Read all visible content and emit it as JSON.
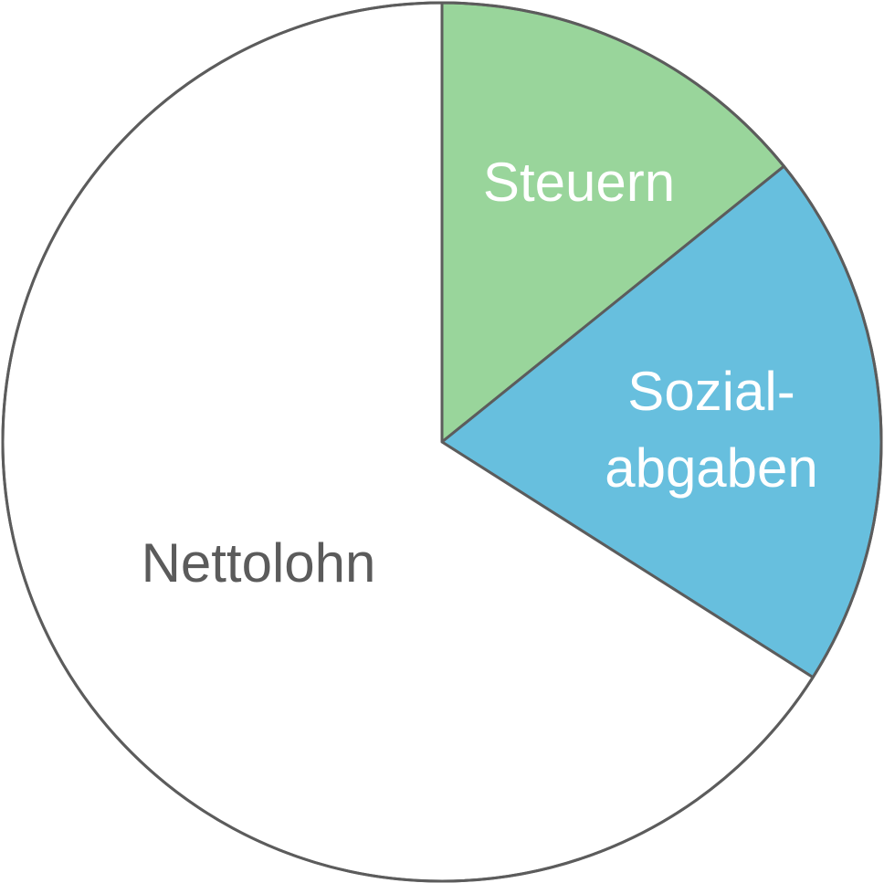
{
  "chart_data": {
    "type": "pie",
    "title": "",
    "start": "12 o'clock",
    "direction": "clockwise",
    "slices": [
      {
        "key": "steuern",
        "label_lines": [
          "Steuern"
        ],
        "value": 14.2,
        "color": "#99d59b",
        "label_color": "#ffffff"
      },
      {
        "key": "sozialabgaben",
        "label_lines": [
          "Sozial-",
          "abgaben"
        ],
        "value": 19.8,
        "color": "#67bfde",
        "label_color": "#ffffff"
      },
      {
        "key": "nettolohn",
        "label_lines": [
          "Nettolohn"
        ],
        "value": 66.0,
        "color": "#ffffff",
        "label_color": "#5b5b5b"
      }
    ],
    "outline_color": "#5c5c5c"
  }
}
